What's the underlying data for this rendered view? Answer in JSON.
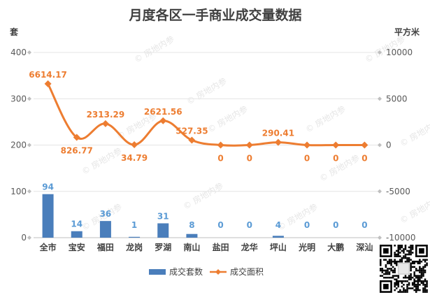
{
  "chart_data": {
    "type": "bar+line",
    "title": "月度各区一手商业成交量数据",
    "categories": [
      "全市",
      "宝安",
      "福田",
      "龙岗",
      "罗湖",
      "南山",
      "盐田",
      "龙华",
      "坪山",
      "光明",
      "大鹏",
      "深汕"
    ],
    "y_left": {
      "unit": "套",
      "ylim": [
        0,
        400
      ],
      "ticks": [
        0,
        100,
        200,
        300,
        400
      ]
    },
    "y_right": {
      "unit": "平方米",
      "ylim": [
        -10000,
        10000
      ],
      "ticks": [
        -10000,
        -5000,
        0,
        5000,
        10000
      ]
    },
    "series": [
      {
        "name": "成交套数",
        "type": "bar",
        "axis": "left",
        "color": "#4a7ebb",
        "values": [
          94,
          14,
          36,
          1,
          31,
          8,
          0,
          0,
          4,
          0,
          0,
          0
        ],
        "labels": [
          "94",
          "14",
          "36",
          "1",
          "31",
          "8",
          "0",
          "0",
          "4",
          "0",
          "0",
          "0"
        ]
      },
      {
        "name": "成交面积",
        "type": "line",
        "axis": "right",
        "color": "#ed7d31",
        "smooth": true,
        "values": [
          6614.17,
          826.77,
          2313.29,
          34.79,
          2621.56,
          527.35,
          0,
          0,
          290.41,
          0,
          0,
          0
        ],
        "labels": [
          "6614.17",
          "826.77",
          "2313.29",
          "34.79",
          "2621.56",
          "527.35",
          "0",
          "0",
          "290.41",
          "0",
          "0",
          "0"
        ]
      }
    ],
    "grid": true,
    "legend_position": "bottom",
    "watermark": "房地内参"
  }
}
